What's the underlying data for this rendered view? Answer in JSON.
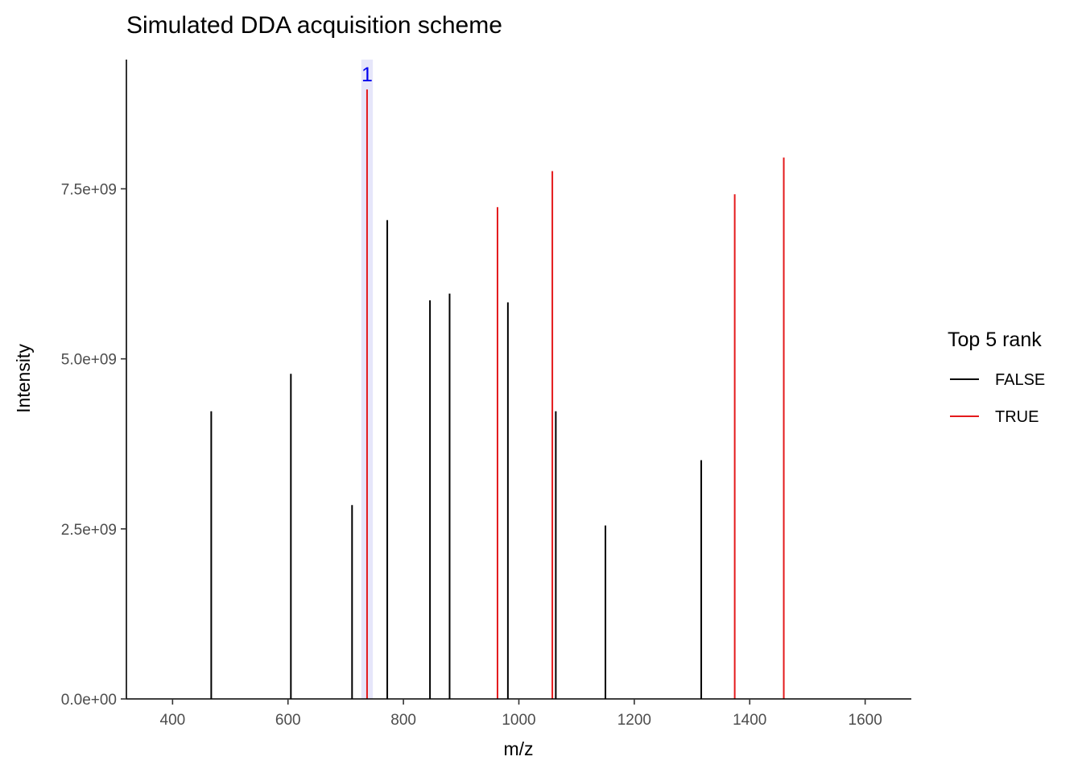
{
  "chart_data": {
    "type": "bar",
    "title": "Simulated DDA acquisition scheme",
    "xlabel": "m/z",
    "ylabel": "Intensity",
    "xlim": [
      320,
      1680
    ],
    "ylim": [
      0,
      9400000000
    ],
    "x_ticks": [
      400,
      600,
      800,
      1000,
      1200,
      1400,
      1600
    ],
    "y_ticks": [
      0,
      2500000000,
      5000000000,
      7500000000
    ],
    "y_tick_labels": [
      "0.0e+00",
      "2.5e+09",
      "5.0e+09",
      "7.5e+09"
    ],
    "grid": false,
    "legend": {
      "title": "Top 5 rank",
      "placement": "right",
      "entries": [
        {
          "label": "FALSE",
          "color": "#000000"
        },
        {
          "label": "TRUE",
          "color": "#e41a1c"
        }
      ]
    },
    "series": [
      {
        "name": "FALSE",
        "color": "#000000",
        "x": [
          467,
          605,
          711,
          772,
          846,
          880,
          981,
          1064,
          1150,
          1316
        ],
        "values": [
          4230000000,
          4780000000,
          2850000000,
          7040000000,
          5860000000,
          5960000000,
          5830000000,
          4230000000,
          2550000000,
          3510000000
        ]
      },
      {
        "name": "TRUE",
        "color": "#e41a1c",
        "x": [
          737,
          963,
          1058,
          1374,
          1459
        ],
        "values": [
          8960000000,
          7230000000,
          7760000000,
          7420000000,
          7960000000
        ]
      }
    ],
    "highlight": {
      "label": "1",
      "x": 737,
      "xrange": [
        727,
        747
      ],
      "label_color": "#0000ee",
      "band_color": "#e6e6fa"
    }
  }
}
